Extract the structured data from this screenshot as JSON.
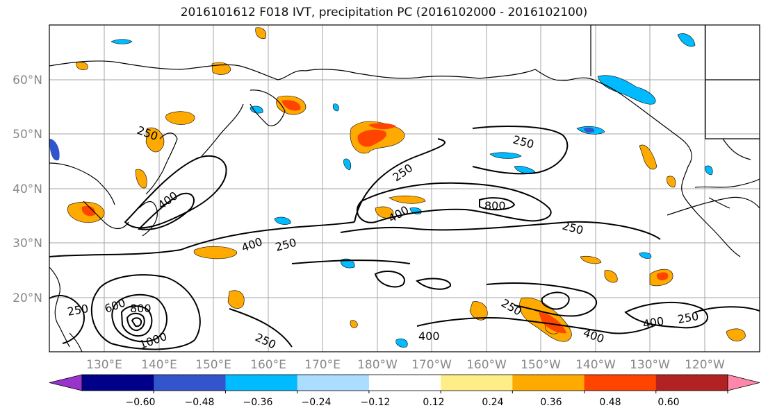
{
  "title": "2016101612 F018 IVT, precipitation PC (2016102000 - 2016102100)",
  "map": {
    "lat_labels": [
      "60°N",
      "50°N",
      "40°N",
      "30°N",
      "20°N"
    ],
    "lon_labels": [
      "130°E",
      "140°E",
      "150°E",
      "160°E",
      "170°E",
      "180°W",
      "170°W",
      "160°W",
      "150°W",
      "140°W",
      "130°W",
      "120°W"
    ],
    "contour_labels": [
      "250",
      "250",
      "250",
      "250",
      "250",
      "250",
      "250",
      "250",
      "250",
      "400",
      "400",
      "400",
      "400",
      "400",
      "400",
      "600",
      "800",
      "800",
      "1000"
    ],
    "grid_color": "#a6a6a6",
    "coastline_color": "#000000"
  },
  "colorbar": {
    "colors": [
      "#9933cc",
      "#000088",
      "#3355cc",
      "#00bbff",
      "#aaddff",
      "#ffffff",
      "#ffee88",
      "#ffaa00",
      "#ff4400",
      "#b22222",
      "#ff88aa"
    ],
    "tick_labels": [
      "−0.60",
      "−0.48",
      "−0.36",
      "−0.24",
      "−0.12",
      "0.12",
      "0.24",
      "0.36",
      "0.48",
      "0.60"
    ]
  }
}
